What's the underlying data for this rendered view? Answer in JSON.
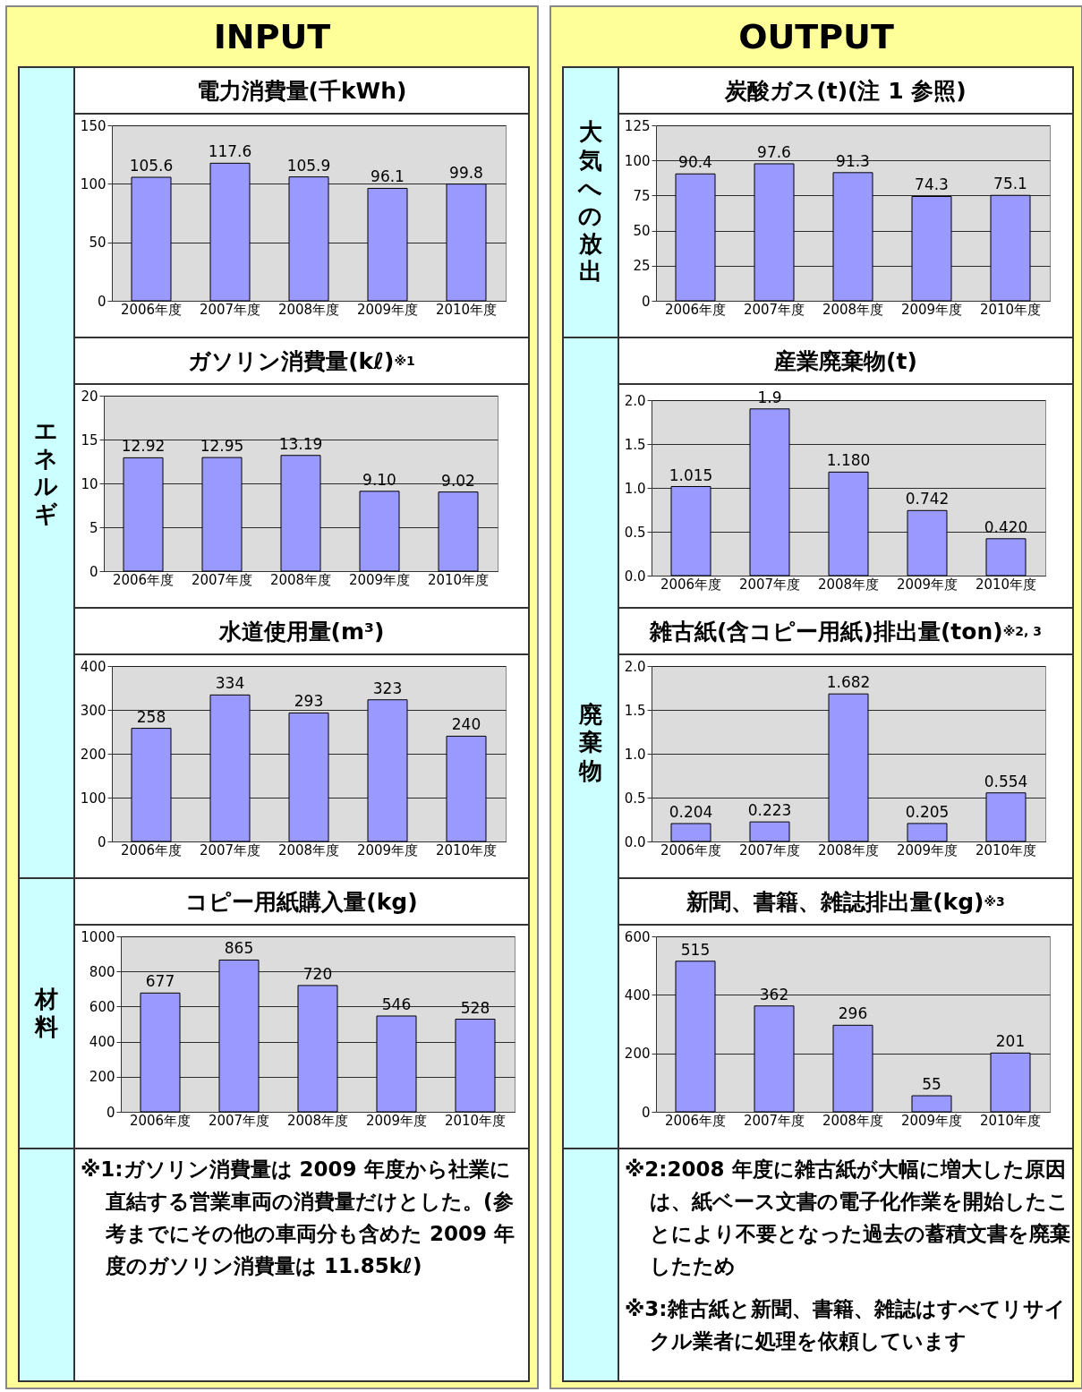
{
  "chart_data": [
    {
      "type": "other",
      "title": "INPUT"
    },
    {
      "type": "other",
      "title": "OUTPUT"
    },
    {
      "type": "bar",
      "title": "電力消費量(千kWh)",
      "categories": [
        "2006年度",
        "2007年度",
        "2008年度",
        "2009年度",
        "2010年度"
      ],
      "values": [
        105.6,
        117.6,
        105.9,
        96.1,
        99.8
      ],
      "value_labels": [
        "105.6",
        "117.6",
        "105.9",
        "96.1",
        "99.8"
      ],
      "color": "#9999ff",
      "ylim": [
        0,
        150
      ],
      "yticks": [
        0,
        50,
        100,
        150
      ],
      "grid": "y"
    },
    {
      "type": "bar",
      "title": "炭酸ガス(t)(注 1 参照)",
      "categories": [
        "2006年度",
        "2007年度",
        "2008年度",
        "2009年度",
        "2010年度"
      ],
      "values": [
        90.4,
        97.6,
        91.3,
        74.3,
        75.1
      ],
      "value_labels": [
        "90.4",
        "97.6",
        "91.3",
        "74.3",
        "75.1"
      ],
      "color": "#9999ff",
      "ylim": [
        0,
        125
      ],
      "yticks": [
        0,
        25,
        50,
        75,
        100,
        125
      ],
      "grid": "y"
    },
    {
      "type": "bar",
      "title": "ガソリン消費量(kℓ)$^{※1}$",
      "categories": [
        "2006年度",
        "2007年度",
        "2008年度",
        "2009年度",
        "2010年度"
      ],
      "values": [
        12.92,
        12.95,
        13.19,
        9.1,
        9.02
      ],
      "value_labels": [
        "12.92",
        "12.95",
        "13.19",
        "9.10",
        "9.02"
      ],
      "color": "#9999ff",
      "ylim": [
        0,
        20
      ],
      "yticks": [
        0,
        5,
        10,
        15,
        20
      ],
      "grid": "y"
    },
    {
      "type": "bar",
      "title": "産業廃棄物(t)",
      "categories": [
        "2006年度",
        "2007年度",
        "2008年度",
        "2009年度",
        "2010年度"
      ],
      "values": [
        1.015,
        1.9,
        1.18,
        0.742,
        0.42
      ],
      "value_labels": [
        "1.015",
        "1.9",
        "1.180",
        "0.742",
        "0.420"
      ],
      "color": "#9999ff",
      "ylim": [
        0,
        2
      ],
      "yticks": [
        {
          "value": 0,
          "label": "0.0"
        },
        {
          "value": 0.5,
          "label": "0.5"
        },
        {
          "value": 1,
          "label": "1.0"
        },
        {
          "value": 1.5,
          "label": "1.5"
        },
        {
          "value": 2,
          "label": "2.0"
        }
      ],
      "grid": "y"
    },
    {
      "type": "bar",
      "title": "水道使用量(m³)",
      "categories": [
        "2006年度",
        "2007年度",
        "2008年度",
        "2009年度",
        "2010年度"
      ],
      "values": [
        258,
        334,
        293,
        323,
        240
      ],
      "value_labels": [
        "258",
        "334",
        "293",
        "323",
        "240"
      ],
      "color": "#9999ff",
      "ylim": [
        0,
        400
      ],
      "yticks": [
        0,
        100,
        200,
        300,
        400
      ],
      "grid": "y"
    },
    {
      "type": "bar",
      "title": "雑古紙(含コピー用紙)排出量(ton)$^{※2, 3}$",
      "categories": [
        "2006年度",
        "2007年度",
        "2008年度",
        "2009年度",
        "2010年度"
      ],
      "values": [
        0.204,
        0.223,
        1.682,
        0.205,
        0.554
      ],
      "value_labels": [
        "0.204",
        "0.223",
        "1.682",
        "0.205",
        "0.554"
      ],
      "color": "#9999ff",
      "ylim": [
        0,
        2
      ],
      "yticks": [
        {
          "value": 0,
          "label": "0.0"
        },
        {
          "value": 0.5,
          "label": "0.5"
        },
        {
          "value": 1,
          "label": "1.0"
        },
        {
          "value": 1.5,
          "label": "1.5"
        },
        {
          "value": 2,
          "label": "2.0"
        }
      ],
      "grid": "y"
    },
    {
      "type": "bar",
      "title": "コピー用紙購入量(kg)",
      "categories": [
        "2006年度",
        "2007年度",
        "2008年度",
        "2009年度",
        "2010年度"
      ],
      "values": [
        677,
        865,
        720,
        546,
        528
      ],
      "value_labels": [
        "677",
        "865",
        "720",
        "546",
        "528"
      ],
      "color": "#9999ff",
      "ylim": [
        0,
        1000
      ],
      "yticks": [
        0,
        200,
        400,
        600,
        800,
        1000
      ],
      "grid": "y"
    },
    {
      "type": "bar",
      "title": "新聞、書籍、雑誌排出量(kg)$^{※3}$",
      "categories": [
        "2006年度",
        "2007年度",
        "2008年度",
        "2009年度",
        "2010年度"
      ],
      "values": [
        515,
        362,
        296,
        55,
        201
      ],
      "value_labels": [
        "515",
        "362",
        "296",
        "55",
        "201"
      ],
      "color": "#9999ff",
      "ylim": [
        0,
        600
      ],
      "yticks": [
        0,
        200,
        400,
        600
      ],
      "grid": "y"
    },
    {
      "type": "other",
      "annotations": [
        "※1:ガソリン消費量は 2009 年度から社業に直結する営業車両の消費量だけとした。(参考までにその他の車両分も含めた 2009 年度のガソリン消費量は 11.85kℓ)"
      ]
    },
    {
      "type": "other",
      "annotations": [
        "※2:2008 年度に雑古紙が大幅に増大した原因は、紙ベース文書の電子化作業を開始したことにより不要となった過去の蓄積文書を廃棄したため",
        "※3:雑古紙と新聞、書籍、雑誌はすべてリサイクル業者に処理を依頼しています"
      ]
    },
    {
      "type": "other",
      "title": "エネルギ"
    },
    {
      "type": "other",
      "title": "材料"
    },
    {
      "type": "other",
      "title": "大気への放出"
    },
    {
      "type": "other",
      "title": "廃棄物"
    }
  ]
}
